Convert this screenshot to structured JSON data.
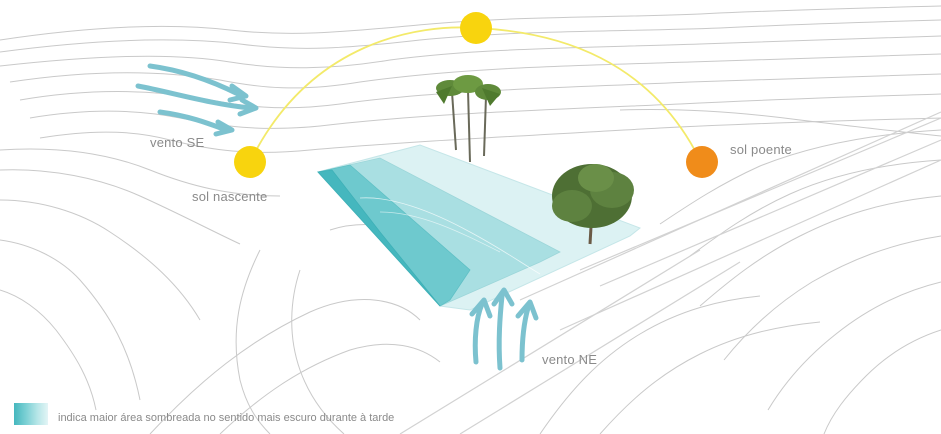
{
  "labels": {
    "wind_se": "vento SE",
    "sunrise": "sol nascente",
    "sunset": "sol poente",
    "wind_ne": "vento NE"
  },
  "legend": {
    "text": "indica maior área sombreada no sentido mais escuro durante à tarde"
  },
  "colors": {
    "sun_yellow": "#f8d40e",
    "sun_orange": "#f08c1a",
    "sun_path": "#f3ea6a",
    "wind": "#7cc2cf",
    "shade_dark": "#45b7be",
    "shade_light": "#e3f5f6",
    "contour": "#c9c9c9"
  }
}
